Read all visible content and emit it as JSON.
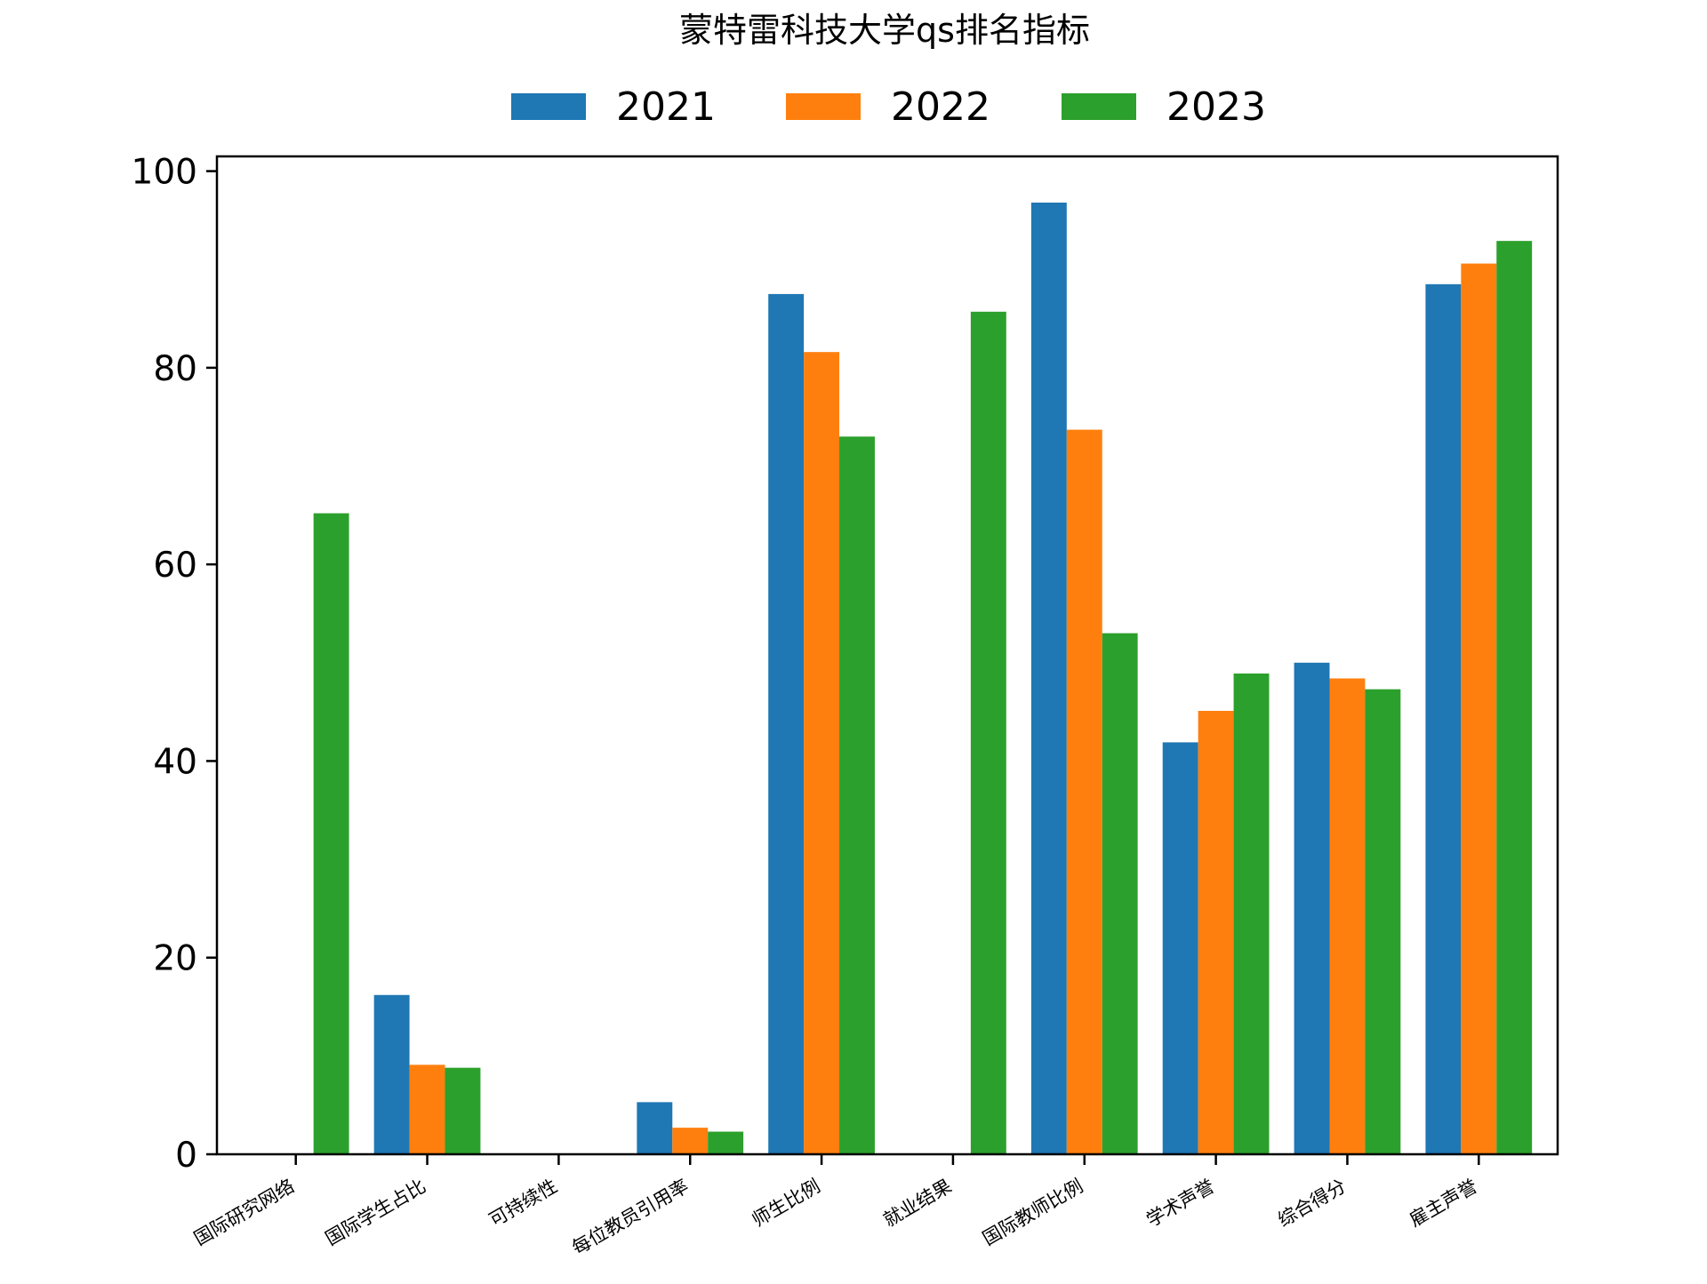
{
  "chart_data": {
    "type": "bar",
    "title": "蒙特雷科技大学qs排名指标",
    "xlabel": "",
    "ylabel": "",
    "categories": [
      "国际研究网络",
      "国际学生占比",
      "可持续性",
      "每位教员引用率",
      "师生比例",
      "就业结果",
      "国际教师比例",
      "学术声誉",
      "综合得分",
      "雇主声誉"
    ],
    "series": [
      {
        "name": "2021",
        "color": "#1f77b4",
        "values": [
          null,
          16.2,
          null,
          5.3,
          87.5,
          null,
          96.8,
          41.9,
          50.0,
          88.5
        ]
      },
      {
        "name": "2022",
        "color": "#ff7f0e",
        "values": [
          null,
          9.1,
          null,
          2.7,
          81.6,
          null,
          73.7,
          45.1,
          48.4,
          90.6
        ]
      },
      {
        "name": "2023",
        "color": "#2ca02c",
        "values": [
          65.2,
          8.8,
          null,
          2.3,
          73.0,
          85.7,
          53.0,
          48.9,
          47.3,
          92.9
        ]
      }
    ],
    "ylim": [
      0,
      101.5
    ],
    "yticks": [
      0,
      20,
      40,
      60,
      80,
      100
    ],
    "grid": false,
    "legend_position": "top-center"
  }
}
